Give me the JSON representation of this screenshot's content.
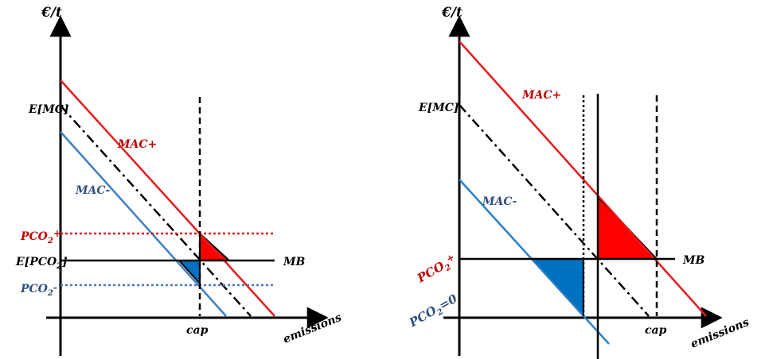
{
  "colors": {
    "axis": "#000000",
    "mac_plus": "#e31a1c",
    "mac_minus": "#3f7fc1",
    "pco2_plus_text": "#c00000",
    "pco2_minus_text": "#2f4f7f",
    "pco2_plus_dotted": "#e31a1c",
    "pco2_minus_dotted": "#4a78b8",
    "triangle_red": "#ff0000",
    "triangle_blue": "#0070c0"
  },
  "left": {
    "y_axis_label": "€/t",
    "x_axis_label": "emissions",
    "emc_label": "E[MC]",
    "epco2_label": "E[PCO",
    "epco2_sub": "2",
    "epco2_close": "]",
    "pco2_plus_label": "PCO",
    "pco2_plus_sub": "2",
    "pco2_plus_sup": "+",
    "pco2_minus_label": "PCO",
    "pco2_minus_sub": "2",
    "pco2_minus_sup": "-",
    "mac_plus_label": "MAC+",
    "mac_minus_label": "MAC-",
    "mb_label": "MB",
    "cap_label": "cap"
  },
  "right": {
    "y_axis_label": "€/t",
    "x_axis_label": "emissions",
    "emc_label": "E[MC]",
    "mac_plus_label": "MAC+",
    "mac_minus_label": "MAC-",
    "mb_label": "MB",
    "cap_label": "cap",
    "pco2_plus_label": "PCO",
    "pco2_plus_sub": "2",
    "pco2_plus_sup": "+",
    "pco2_zero_label": "PCO",
    "pco2_zero_sub": "2",
    "pco2_zero_tail": "=0"
  }
}
